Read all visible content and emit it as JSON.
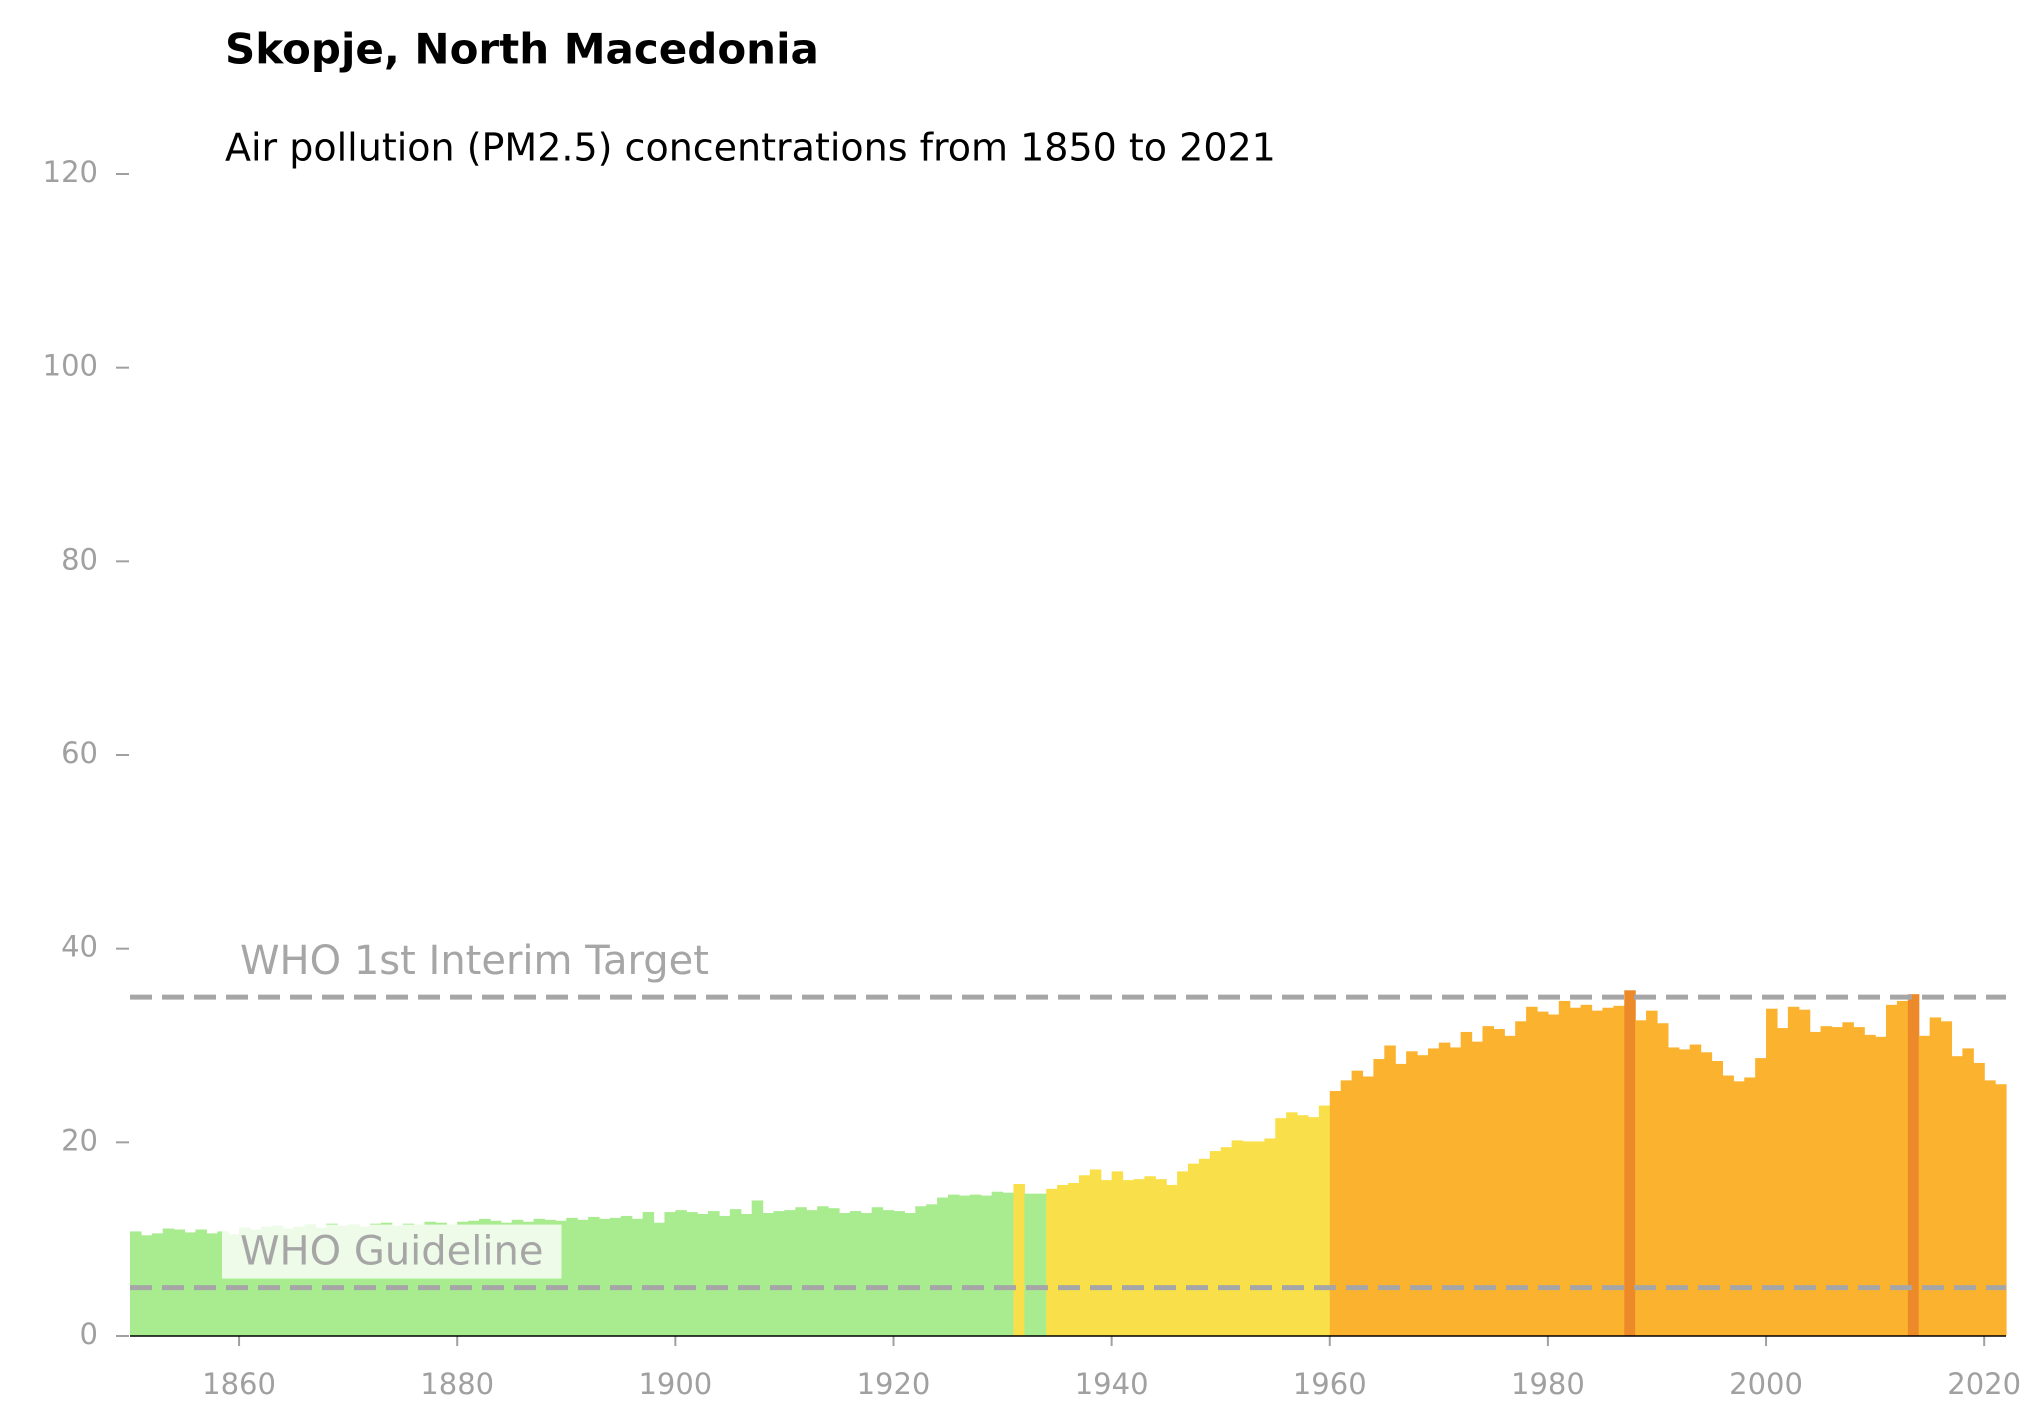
{
  "chart_data": {
    "type": "bar",
    "title": "Skopje, North Macedonia",
    "subtitle": "Air pollution (PM2.5) concentrations from 1850 to 2021",
    "x": [
      1850,
      1851,
      1852,
      1853,
      1854,
      1855,
      1856,
      1857,
      1858,
      1859,
      1860,
      1861,
      1862,
      1863,
      1864,
      1865,
      1866,
      1867,
      1868,
      1869,
      1870,
      1871,
      1872,
      1873,
      1874,
      1875,
      1876,
      1877,
      1878,
      1879,
      1880,
      1881,
      1882,
      1883,
      1884,
      1885,
      1886,
      1887,
      1888,
      1889,
      1890,
      1891,
      1892,
      1893,
      1894,
      1895,
      1896,
      1897,
      1898,
      1899,
      1900,
      1901,
      1902,
      1903,
      1904,
      1905,
      1906,
      1907,
      1908,
      1909,
      1910,
      1911,
      1912,
      1913,
      1914,
      1915,
      1916,
      1917,
      1918,
      1919,
      1920,
      1921,
      1922,
      1923,
      1924,
      1925,
      1926,
      1927,
      1928,
      1929,
      1930,
      1931,
      1932,
      1933,
      1934,
      1935,
      1936,
      1937,
      1938,
      1939,
      1940,
      1941,
      1942,
      1943,
      1944,
      1945,
      1946,
      1947,
      1948,
      1949,
      1950,
      1951,
      1952,
      1953,
      1954,
      1955,
      1956,
      1957,
      1958,
      1959,
      1960,
      1961,
      1962,
      1963,
      1964,
      1965,
      1966,
      1967,
      1968,
      1969,
      1970,
      1971,
      1972,
      1973,
      1974,
      1975,
      1976,
      1977,
      1978,
      1979,
      1980,
      1981,
      1982,
      1983,
      1984,
      1985,
      1986,
      1987,
      1988,
      1989,
      1990,
      1991,
      1992,
      1993,
      1994,
      1995,
      1996,
      1997,
      1998,
      1999,
      2000,
      2001,
      2002,
      2003,
      2004,
      2005,
      2006,
      2007,
      2008,
      2009,
      2010,
      2011,
      2012,
      2013,
      2014,
      2015,
      2016,
      2017,
      2018,
      2019,
      2020,
      2021
    ],
    "values": [
      10.8,
      10.4,
      10.6,
      11.1,
      11.0,
      10.7,
      11.0,
      10.6,
      10.8,
      10.5,
      11.2,
      11.0,
      11.3,
      11.4,
      11.1,
      11.3,
      11.5,
      11.2,
      11.6,
      11.4,
      11.5,
      11.3,
      11.6,
      11.7,
      11.4,
      11.6,
      11.5,
      11.8,
      11.7,
      11.5,
      11.8,
      11.9,
      12.1,
      11.9,
      11.7,
      12.0,
      11.8,
      12.1,
      12.0,
      11.9,
      12.2,
      12.0,
      12.3,
      12.1,
      12.2,
      12.4,
      12.1,
      12.8,
      11.7,
      12.8,
      13.0,
      12.8,
      12.6,
      12.9,
      12.4,
      13.1,
      12.6,
      14.0,
      12.7,
      12.9,
      13.0,
      13.3,
      13.0,
      13.4,
      13.2,
      12.7,
      12.9,
      12.7,
      13.3,
      13.0,
      12.9,
      12.7,
      13.4,
      13.6,
      14.3,
      14.6,
      14.5,
      14.6,
      14.5,
      14.9,
      14.8,
      15.7,
      14.7,
      14.7,
      15.2,
      15.6,
      15.8,
      16.6,
      17.2,
      16.1,
      17.0,
      16.1,
      16.2,
      16.5,
      16.2,
      15.6,
      17.0,
      17.8,
      18.3,
      19.1,
      19.5,
      20.2,
      20.1,
      20.1,
      20.4,
      22.5,
      23.1,
      22.8,
      22.6,
      23.8,
      25.3,
      26.4,
      27.4,
      26.8,
      28.6,
      30.0,
      28.1,
      29.4,
      29.0,
      29.7,
      30.3,
      29.8,
      31.4,
      30.4,
      32.0,
      31.7,
      31.0,
      32.5,
      34.0,
      33.5,
      33.2,
      34.6,
      33.9,
      34.2,
      33.6,
      33.9,
      34.1,
      35.7,
      32.6,
      33.6,
      32.3,
      29.8,
      29.6,
      30.1,
      29.3,
      28.4,
      26.9,
      26.3,
      26.7,
      28.7,
      33.8,
      31.8,
      34.0,
      33.7,
      31.4,
      32.0,
      31.9,
      32.4,
      31.9,
      31.1,
      30.9,
      34.2,
      34.6,
      35.3,
      31.0,
      32.9,
      32.5,
      28.9,
      29.7,
      28.2,
      26.4,
      26.0
    ],
    "color_levels": {
      "breaks": [
        15,
        25,
        35
      ],
      "colors": [
        "#a8ec8f",
        "#f9e04b",
        "#fbb32f",
        "#ec8a2a"
      ]
    },
    "reference_lines": [
      {
        "label": "WHO Guideline",
        "value": 5
      },
      {
        "label": "WHO 1st Interim Target",
        "value": 35
      }
    ],
    "xlim": [
      1850,
      2022
    ],
    "xticks": [
      1860,
      1880,
      1900,
      1920,
      1940,
      1960,
      1980,
      2000,
      2020
    ],
    "ylim": [
      0,
      120
    ],
    "yticks": [
      0,
      20,
      40,
      60,
      80,
      100,
      120
    ]
  }
}
